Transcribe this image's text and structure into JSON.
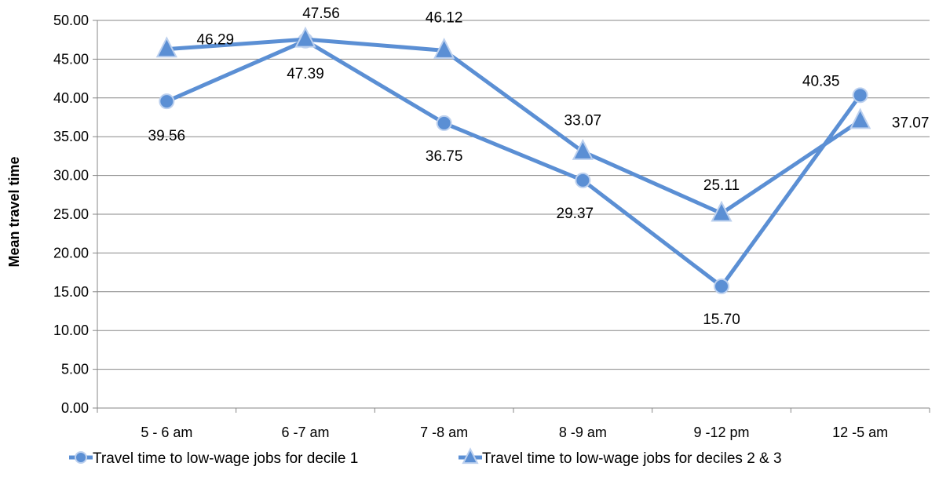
{
  "chart_data": {
    "type": "line",
    "title": "",
    "xlabel": "",
    "ylabel": "Mean travel time",
    "categories": [
      "5 - 6 am",
      "6 -7 am",
      "7 -8 am",
      "8 -9 am",
      "9 -12 pm",
      "12 -5 am"
    ],
    "ylim": [
      0,
      50
    ],
    "y_ticks": [
      "0.00",
      "5.00",
      "10.00",
      "15.00",
      "20.00",
      "25.00",
      "30.00",
      "35.00",
      "40.00",
      "45.00",
      "50.00"
    ],
    "grid": true,
    "legend_position": "bottom",
    "series": [
      {
        "name": "Travel time to low-wage jobs for decile 1",
        "marker": "circle",
        "color": "#5B8FD4",
        "values": [
          39.56,
          47.39,
          36.75,
          29.37,
          15.7,
          40.35
        ],
        "labels": [
          "39.56",
          "47.39",
          "36.75",
          "29.37",
          "15.70",
          "40.35"
        ]
      },
      {
        "name": "Travel time to low-wage jobs for deciles 2 & 3",
        "marker": "triangle",
        "color": "#5B8FD4",
        "values": [
          46.29,
          47.56,
          46.12,
          33.07,
          25.11,
          37.07
        ],
        "labels": [
          "46.29",
          "47.56",
          "46.12",
          "33.07",
          "25.11",
          "37.07"
        ]
      }
    ]
  }
}
